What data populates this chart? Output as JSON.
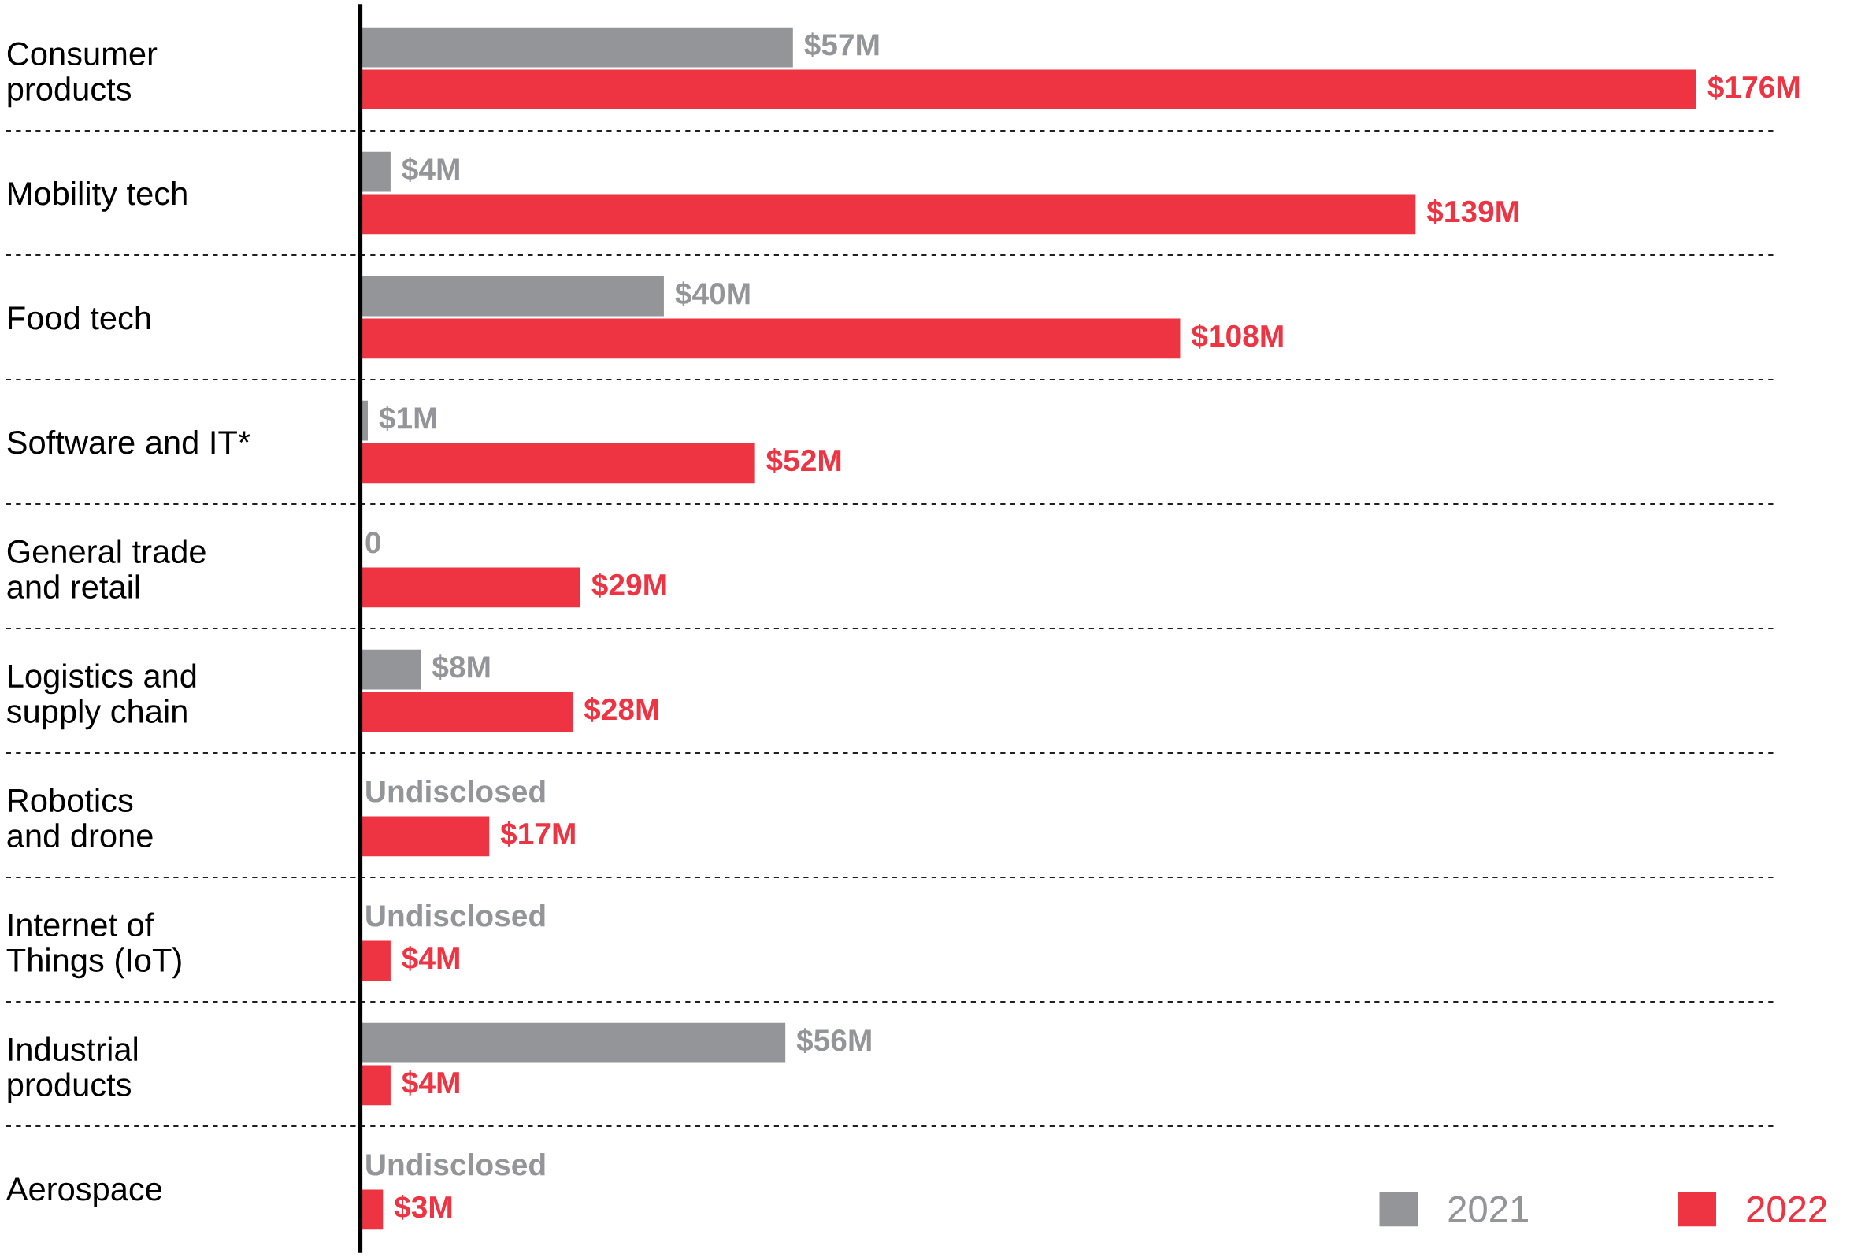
{
  "chart_data": {
    "type": "bar",
    "orientation": "horizontal",
    "categories": [
      "Consumer\nproducts",
      "Mobility tech",
      "Food tech",
      "Software and IT*",
      "General trade\nand retail",
      "Logistics and\nsupply chain",
      "Robotics\nand drone",
      "Internet of\nThings (IoT)",
      "Industrial\nproducts",
      "Aerospace"
    ],
    "series": [
      {
        "name": "2021",
        "color": "#939598",
        "values": [
          57,
          4,
          40,
          1,
          0,
          8,
          null,
          null,
          56,
          null
        ],
        "value_labels": [
          "$57M",
          "$4M",
          "$40M",
          "$1M",
          "0",
          "$8M",
          "Undisclosed",
          "Undisclosed",
          "$56M",
          "Undisclosed"
        ]
      },
      {
        "name": "2022",
        "color": "#ee3342",
        "values": [
          176,
          139,
          108,
          52,
          29,
          28,
          17,
          4,
          4,
          3
        ],
        "value_labels": [
          "$176M",
          "$139M",
          "$108M",
          "$52M",
          "$29M",
          "$28M",
          "$17M",
          "$4M",
          "$4M",
          "$3M"
        ]
      }
    ],
    "grid": "y",
    "legend": "bottom right",
    "tick_labels": "y"
  }
}
